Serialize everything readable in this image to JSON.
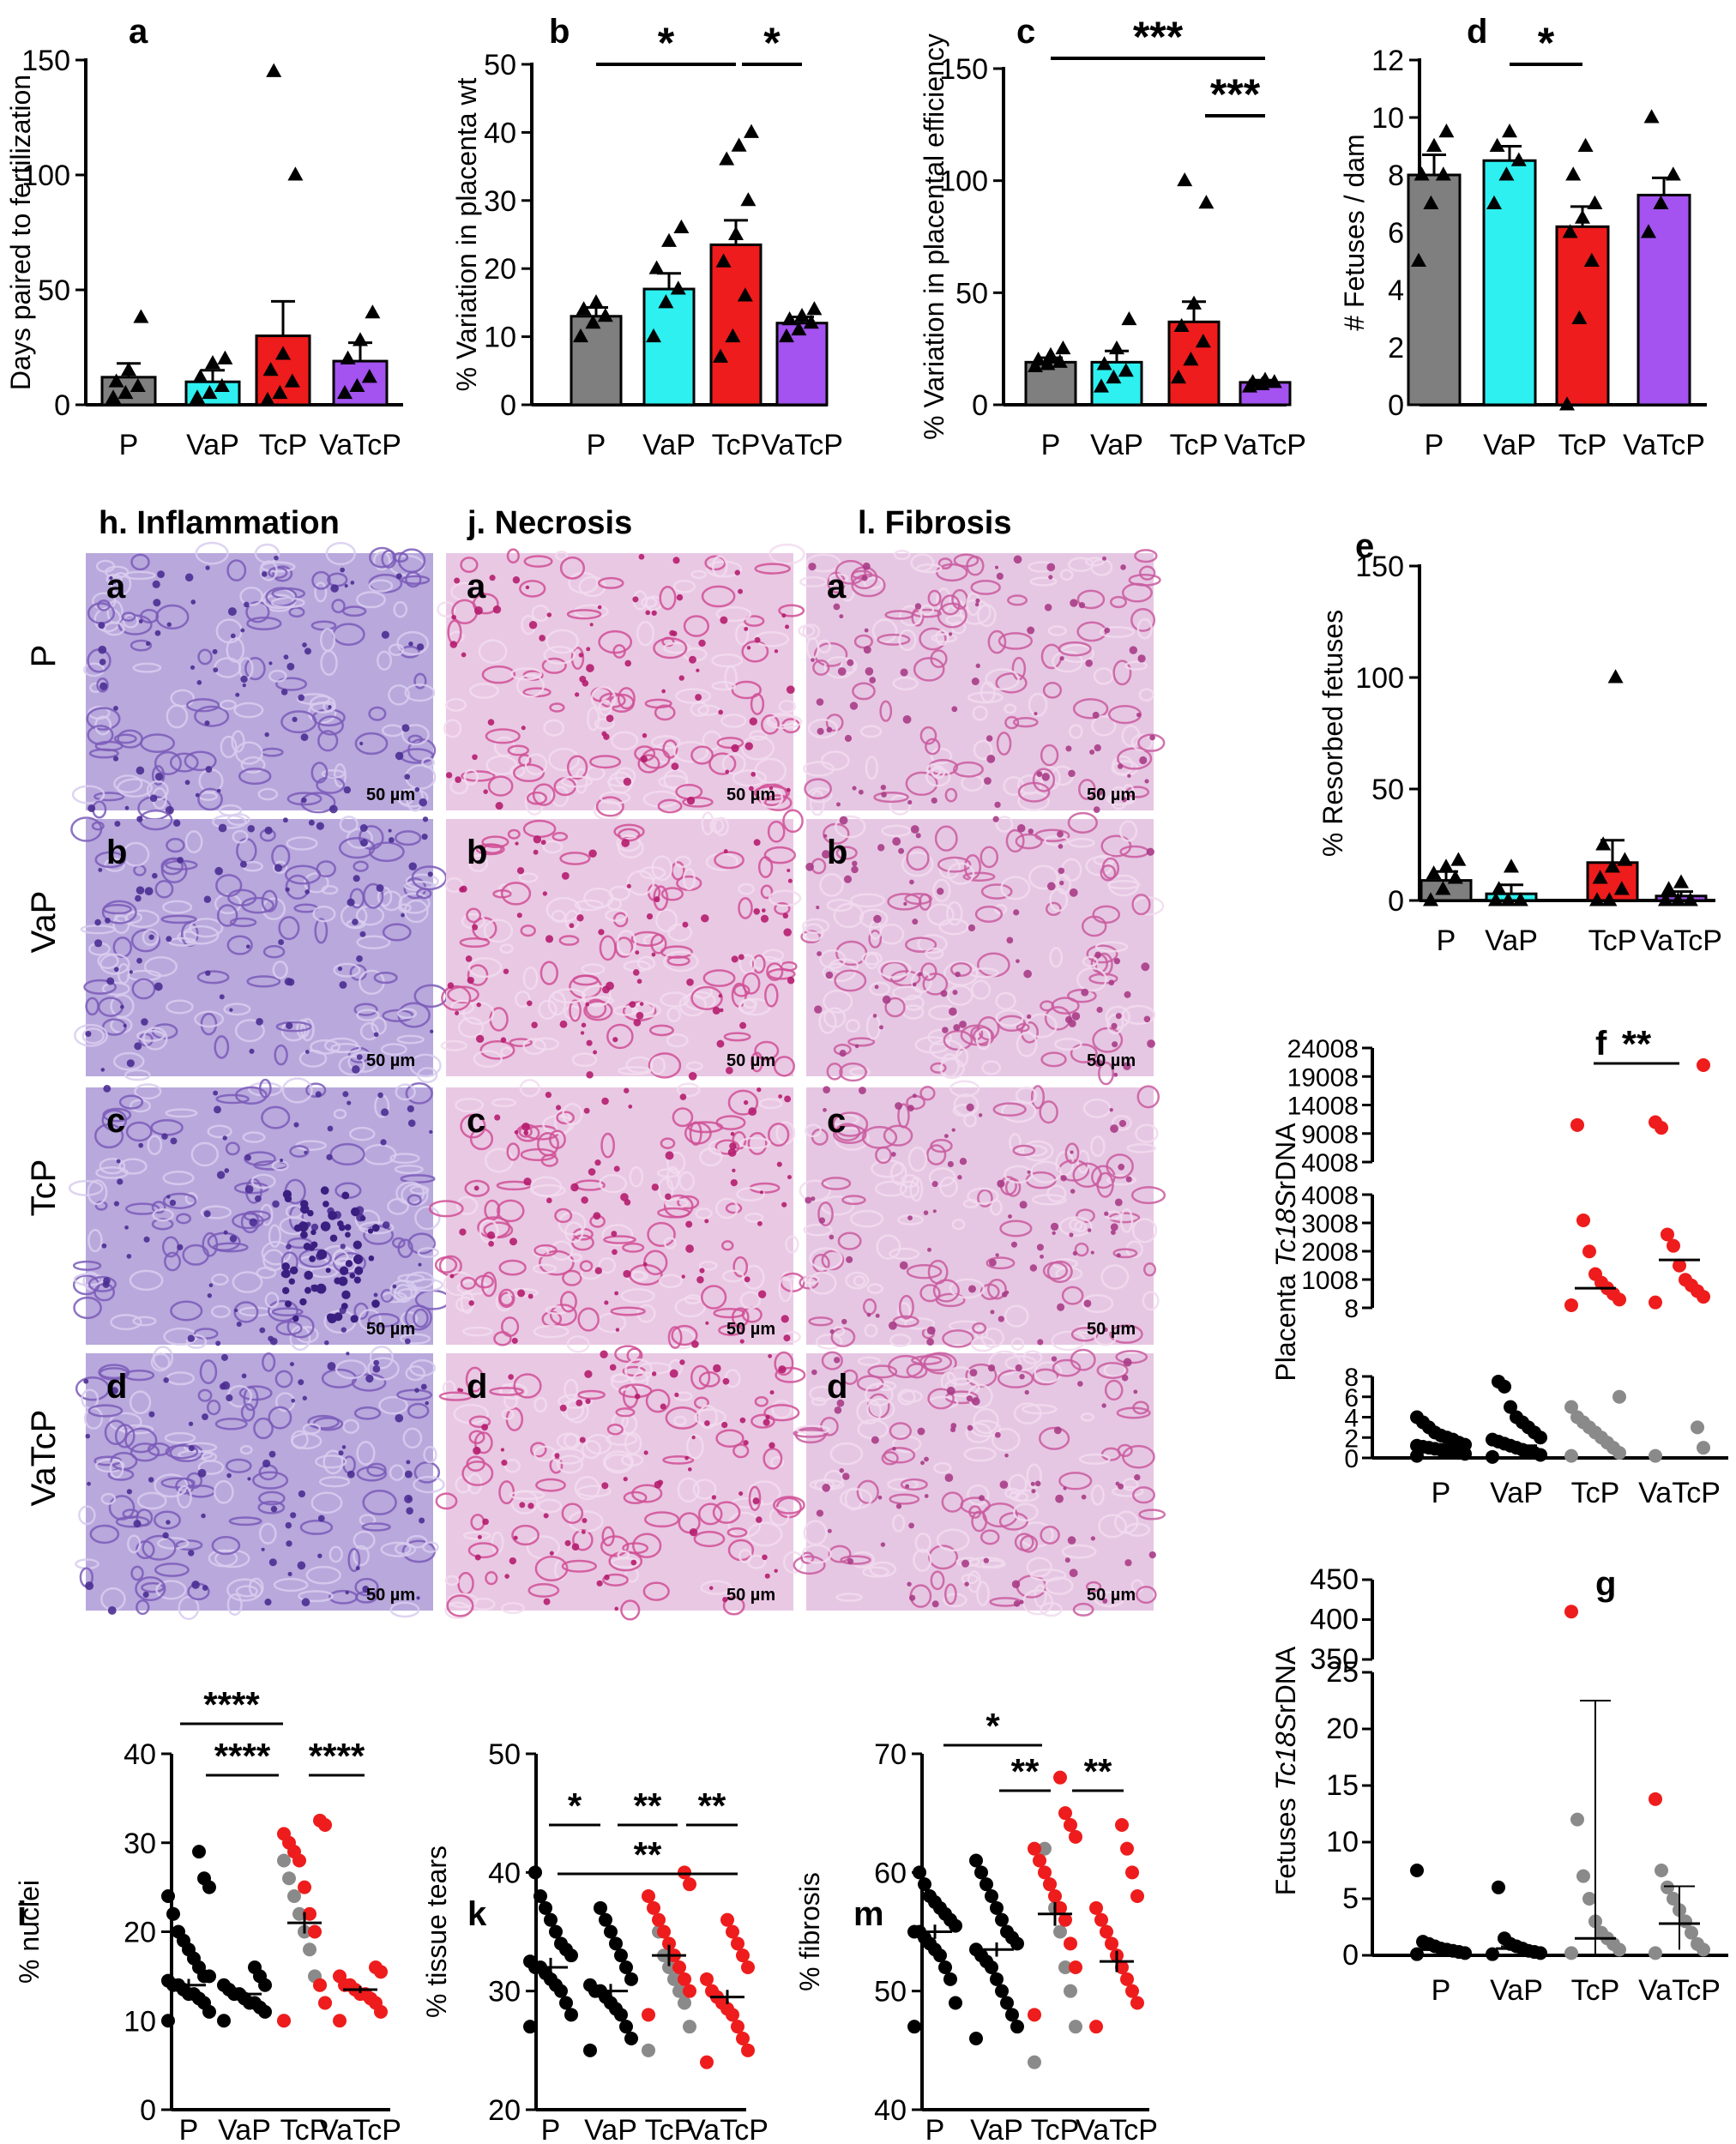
{
  "colors": {
    "P": "#7f7f7f",
    "VaP": "#2ef0f0",
    "TcP": "#ee1c1c",
    "VaTcP": "#a452f0",
    "black": "#000000",
    "grey": "#8a8a8a",
    "red": "#ee1c1c",
    "tissue": "#b06fb5"
  },
  "histology": {
    "headers": [
      "h. Inflammation",
      "j. Necrosis",
      "l. Fibrosis"
    ],
    "row_labels": [
      "P",
      "VaP",
      "TcP",
      "VaTcP"
    ],
    "panel_letters": [
      "a",
      "b",
      "c",
      "d"
    ],
    "scale_bar": "50 µm"
  },
  "chart_data": [
    {
      "id": "a",
      "type": "bar",
      "title": "a",
      "categories": [
        "P",
        "VaP",
        "TcP",
        "VaTcP"
      ],
      "category_labels": [
        "P",
        "VaP",
        "TcP",
        "VaTcP"
      ],
      "ylabel": "Days paired to fertilization",
      "ylim": [
        0,
        150
      ],
      "yticks": [
        0,
        50,
        100,
        150
      ],
      "values": [
        12,
        10,
        30,
        19
      ],
      "errors": [
        6,
        5,
        15,
        8
      ],
      "points": [
        [
          3,
          5,
          8,
          10,
          15,
          38
        ],
        [
          3,
          5,
          8,
          12,
          18,
          20
        ],
        [
          2,
          5,
          10,
          15,
          22,
          100,
          145
        ],
        [
          5,
          8,
          12,
          20,
          28,
          40
        ]
      ],
      "sig": []
    },
    {
      "id": "b",
      "type": "bar",
      "title": "b",
      "categories": [
        "P",
        "VaP",
        "TcP",
        "VaTcP"
      ],
      "category_labels": [
        "P",
        "VaP",
        "TcP",
        "VaTcP"
      ],
      "ylabel": "% Variation in placenta wt",
      "ylim": [
        0,
        50
      ],
      "yticks": [
        0,
        10,
        20,
        30,
        40,
        50
      ],
      "values": [
        13,
        17,
        23.5,
        12
      ],
      "errors": [
        1.3,
        2.3,
        3.6,
        0.9
      ],
      "points": [
        [
          10,
          12,
          13,
          14,
          15
        ],
        [
          10,
          15,
          17,
          20,
          24,
          26
        ],
        [
          7,
          10,
          16,
          21,
          25,
          30,
          36,
          38,
          40
        ],
        [
          10,
          11,
          12,
          12.5,
          13,
          14
        ]
      ],
      "sig": [
        {
          "from": 0,
          "to": 2,
          "label": "*"
        },
        {
          "from": 2,
          "to": 3,
          "label": "*"
        }
      ]
    },
    {
      "id": "c",
      "type": "bar",
      "title": "c",
      "categories": [
        "P",
        "VaP",
        "TcP",
        "VaTcP"
      ],
      "category_labels": [
        "P",
        "VaP",
        "TcP",
        "VaTcP"
      ],
      "ylabel": "% Variation in placental efficiency",
      "ylim": [
        0,
        150
      ],
      "yticks": [
        0,
        50,
        100,
        150
      ],
      "values": [
        19,
        19,
        37,
        10
      ],
      "errors": [
        2,
        5,
        9,
        1
      ],
      "points": [
        [
          17,
          18,
          19,
          20,
          22,
          25
        ],
        [
          8,
          12,
          15,
          18,
          25,
          38
        ],
        [
          12,
          20,
          28,
          35,
          45,
          90,
          100
        ],
        [
          8,
          9,
          10,
          10,
          11
        ]
      ],
      "sig": [
        {
          "from": 0,
          "to": 3,
          "label": "***"
        },
        {
          "from": 2,
          "to": 3,
          "label": "***"
        }
      ]
    },
    {
      "id": "d",
      "type": "bar",
      "title": "d",
      "categories": [
        "P",
        "VaP",
        "TcP",
        "VaTcP"
      ],
      "category_labels": [
        "P",
        "VaP",
        "TcP",
        "VaTcP"
      ],
      "ylabel": "# Fetuses / dam",
      "ylim": [
        0,
        12
      ],
      "yticks": [
        0,
        2,
        4,
        6,
        8,
        10,
        12
      ],
      "values": [
        8,
        8.5,
        6.2,
        7.3
      ],
      "errors": [
        0.7,
        0.5,
        0.7,
        0.6
      ],
      "points": [
        [
          5,
          7,
          8,
          8,
          9,
          9.5
        ],
        [
          7,
          8,
          8.5,
          9,
          9.5
        ],
        [
          0,
          3,
          5,
          6,
          6.5,
          7,
          8,
          9
        ],
        [
          6,
          7,
          8,
          10
        ]
      ],
      "sig": [
        {
          "from": 1,
          "to": 2,
          "label": "*"
        }
      ]
    },
    {
      "id": "e",
      "type": "bar",
      "title": "e",
      "categories": [
        "P",
        "VaP",
        "TcP",
        "VaTcP"
      ],
      "category_labels": [
        "P",
        "VaP",
        "TcP",
        "VaTcP"
      ],
      "ylabel": "% Resorbed fetuses",
      "ylim": [
        0,
        150
      ],
      "yticks": [
        0,
        50,
        100,
        150
      ],
      "values": [
        9,
        3,
        17,
        2
      ],
      "errors": [
        4,
        4,
        10,
        2
      ],
      "points": [
        [
          0,
          5,
          10,
          12,
          15,
          18
        ],
        [
          0,
          0,
          0,
          5,
          15
        ],
        [
          0,
          0,
          5,
          10,
          15,
          18,
          25,
          100
        ],
        [
          0,
          0,
          0,
          5,
          8
        ]
      ],
      "sig": []
    },
    {
      "id": "f",
      "type": "scatter",
      "title": "f",
      "categories": [
        "P",
        "VaP",
        "TcP",
        "VaTcP"
      ],
      "category_labels": [
        "P",
        "VaP",
        "TcP",
        "VaTcP"
      ],
      "ylabel": "Placenta Tc18SrDNA",
      "ylabel_parts": [
        "Placenta ",
        "Tc18S",
        "rDNA"
      ],
      "yticks_low": [
        "0",
        "2",
        "4",
        "6",
        "8"
      ],
      "yticks_mid": [
        "8",
        "1008",
        "2008",
        "3008",
        "4008"
      ],
      "yticks_high": [
        "4008",
        "9008",
        "14008",
        "19008",
        "24008"
      ],
      "means": [
        1.0,
        1.2,
        700,
        1700
      ],
      "series": [
        {
          "group": "P",
          "color": "black",
          "values": [
            0.2,
            0.4,
            0.5,
            0.6,
            0.7,
            0.8,
            0.9,
            1.0,
            1.1,
            1.2,
            1.3,
            1.5,
            1.8,
            2.0,
            2.2,
            2.5,
            3.0,
            3.5,
            4.0
          ]
        },
        {
          "group": "VaP",
          "color": "black",
          "values": [
            0.1,
            0.3,
            0.5,
            0.6,
            0.8,
            1.0,
            1.2,
            1.4,
            1.6,
            1.8,
            2.0,
            2.5,
            3.0,
            3.5,
            4.0,
            5.0,
            7.0,
            7.5
          ]
        },
        {
          "group": "TcP",
          "color": "grey",
          "values": [
            0.2,
            0.5,
            1.0,
            1.5,
            2.0,
            2.5,
            3.0,
            3.5,
            4.0,
            5.0,
            6.0
          ]
        },
        {
          "group": "TcP",
          "color": "red",
          "values": [
            100,
            300,
            500,
            700,
            900,
            1200,
            2000,
            3100,
            10500
          ]
        },
        {
          "group": "VaTcP",
          "color": "grey",
          "values": [
            0.2,
            1.0,
            3.0
          ]
        },
        {
          "group": "VaTcP",
          "color": "red",
          "values": [
            200,
            400,
            600,
            800,
            1000,
            1500,
            2200,
            2600,
            10000,
            11000,
            21000
          ]
        }
      ],
      "sig": [
        {
          "from": 2,
          "to": 3,
          "label": "**"
        }
      ]
    },
    {
      "id": "g",
      "type": "scatter",
      "title": "g",
      "categories": [
        "P",
        "VaP",
        "TcP",
        "VaTcP"
      ],
      "category_labels": [
        "P",
        "VaP",
        "TcP",
        "VaTcP"
      ],
      "ylabel": "Fetuses Tc18SrDNA",
      "ylabel_parts": [
        "Fetuses ",
        "Tc18S",
        "rDNA"
      ],
      "yticks_low": [
        "0",
        "5",
        "10",
        "15",
        "20",
        "25"
      ],
      "yticks_high": [
        "350",
        "400",
        "450"
      ],
      "means": [
        0.5,
        0.6,
        1.5,
        2.8
      ],
      "errors": [
        [
          0.2,
          0.2
        ],
        [
          0.2,
          0.2
        ],
        [
          1.5,
          21
        ],
        [
          2.3,
          3.3
        ]
      ],
      "series": [
        {
          "group": "P",
          "color": "black",
          "values": [
            0.1,
            0.2,
            0.3,
            0.4,
            0.5,
            0.6,
            0.8,
            1.0,
            1.2,
            7.5
          ]
        },
        {
          "group": "VaP",
          "color": "black",
          "values": [
            0.1,
            0.2,
            0.3,
            0.4,
            0.6,
            0.8,
            1.0,
            1.5,
            6.0
          ]
        },
        {
          "group": "TcP",
          "color": "grey",
          "values": [
            0.2,
            0.5,
            1.0,
            1.5,
            2.0,
            3.0,
            5.0,
            7.0,
            12.0
          ]
        },
        {
          "group": "TcP",
          "color": "red",
          "values": [
            410
          ]
        },
        {
          "group": "VaTcP",
          "color": "grey",
          "values": [
            0.2,
            0.5,
            1.0,
            2.0,
            3.0,
            4.0,
            5.0,
            6.0,
            7.5
          ]
        },
        {
          "group": "VaTcP",
          "color": "red",
          "values": [
            13.8
          ]
        }
      ],
      "sig": []
    },
    {
      "id": "i",
      "type": "scatter",
      "title": "i",
      "categories": [
        "P",
        "VaP",
        "TcP",
        "VaTcP"
      ],
      "category_labels": [
        "P",
        "VaP",
        "TcP",
        "VaTcP"
      ],
      "ylabel": "% nuclei",
      "ylim": [
        0,
        40
      ],
      "yticks": [
        0,
        10,
        20,
        30,
        40
      ],
      "means": [
        14,
        13,
        21,
        13.5
      ],
      "errors": [
        0.7,
        0.4,
        1.2,
        0.4
      ],
      "series": [
        {
          "group": "P",
          "color": "black",
          "values": [
            10,
            11,
            12,
            12.5,
            13,
            13,
            13.5,
            14,
            14,
            14.5,
            15,
            15,
            16,
            17,
            18,
            19,
            20,
            22,
            24,
            25,
            26,
            29
          ]
        },
        {
          "group": "VaP",
          "color": "black",
          "values": [
            10,
            11,
            11.5,
            12,
            12,
            12.5,
            13,
            13,
            13.5,
            14,
            14,
            15,
            16
          ]
        },
        {
          "group": "TcP",
          "color": "grey",
          "values": [
            10,
            12,
            14,
            15,
            18,
            20,
            22,
            24,
            26,
            28
          ]
        },
        {
          "group": "TcP",
          "color": "red",
          "values": [
            10,
            12,
            14,
            20,
            22,
            25,
            28,
            29,
            30,
            31,
            32,
            32.5
          ]
        },
        {
          "group": "VaTcP",
          "color": "red",
          "values": [
            10,
            11,
            12,
            12.5,
            13,
            13,
            13.5,
            14,
            14,
            15,
            15.5,
            16
          ]
        }
      ],
      "sig": [
        {
          "from": 0,
          "to": 2,
          "label": "****"
        },
        {
          "from": 1,
          "to": 2,
          "label": "****"
        },
        {
          "from": 2,
          "to": 3,
          "label": "****"
        }
      ]
    },
    {
      "id": "k",
      "type": "scatter",
      "title": "k",
      "categories": [
        "P",
        "VaP",
        "TcP",
        "VaTcP"
      ],
      "category_labels": [
        "P",
        "VaP",
        "TcP",
        "VaTcP"
      ],
      "ylabel": "% tissue tears",
      "ylim": [
        20,
        50
      ],
      "yticks": [
        20,
        30,
        40,
        50
      ],
      "means": [
        32,
        30,
        33,
        29.5
      ],
      "errors": [
        0.8,
        0.6,
        0.9,
        0.6
      ],
      "series": [
        {
          "group": "P",
          "color": "black",
          "values": [
            27,
            28,
            29,
            30,
            30.5,
            31,
            31.5,
            32,
            32,
            32.5,
            33,
            33.5,
            34,
            35,
            36,
            37,
            38,
            40
          ]
        },
        {
          "group": "VaP",
          "color": "black",
          "values": [
            25,
            26,
            27,
            28,
            28.5,
            29,
            29.5,
            30,
            30,
            30.5,
            31,
            32,
            33,
            34,
            35,
            36,
            37
          ]
        },
        {
          "group": "TcP",
          "color": "grey",
          "values": [
            25,
            27,
            29,
            30,
            31,
            32,
            33,
            35
          ]
        },
        {
          "group": "TcP",
          "color": "red",
          "values": [
            28,
            30,
            31,
            32,
            33,
            34,
            35,
            36,
            37,
            38,
            39,
            40
          ]
        },
        {
          "group": "VaTcP",
          "color": "red",
          "values": [
            24,
            25,
            26,
            27,
            28,
            28.5,
            29,
            29.5,
            30,
            31,
            32,
            33,
            34,
            35,
            36
          ]
        }
      ],
      "sig": [
        {
          "from": 0,
          "to": 1,
          "label": "*"
        },
        {
          "from": 1,
          "to": 2,
          "label": "**"
        },
        {
          "from": 2,
          "to": 3,
          "label": "**"
        },
        {
          "from": 0,
          "to": 3,
          "label": "**"
        }
      ]
    },
    {
      "id": "m",
      "type": "scatter",
      "title": "m",
      "categories": [
        "P",
        "VaP",
        "TcP",
        "VaTcP"
      ],
      "category_labels": [
        "P",
        "VaP",
        "TcP",
        "VaTcP"
      ],
      "ylabel": "% fibrosis",
      "ylim": [
        40,
        70
      ],
      "yticks": [
        40,
        50,
        60,
        70
      ],
      "means": [
        55,
        53.5,
        56.5,
        52.5
      ],
      "errors": [
        0.6,
        0.6,
        1.0,
        0.9
      ],
      "series": [
        {
          "group": "P",
          "color": "black",
          "values": [
            47,
            49,
            51,
            52,
            53,
            53.5,
            54,
            54.5,
            55,
            55,
            55.5,
            56,
            56.5,
            57,
            57.5,
            58,
            59,
            60
          ]
        },
        {
          "group": "VaP",
          "color": "black",
          "values": [
            46,
            47,
            48,
            49,
            50,
            51,
            52,
            52.5,
            53,
            53.5,
            54,
            54.5,
            55,
            56,
            57,
            58,
            59,
            60,
            61
          ]
        },
        {
          "group": "TcP",
          "color": "grey",
          "values": [
            44,
            47,
            50,
            52,
            55,
            57,
            59,
            62
          ]
        },
        {
          "group": "TcP",
          "color": "red",
          "values": [
            48,
            52,
            54,
            56,
            57,
            58,
            59,
            60,
            61,
            62,
            63,
            64,
            65,
            68
          ]
        },
        {
          "group": "VaTcP",
          "color": "red",
          "values": [
            47,
            49,
            50,
            51,
            52,
            53,
            54,
            55,
            56,
            57,
            58,
            60,
            62,
            64
          ]
        }
      ],
      "sig": [
        {
          "from": 0,
          "to": 2,
          "label": "*"
        },
        {
          "from": 1,
          "to": 2,
          "label": "**"
        },
        {
          "from": 2,
          "to": 3,
          "label": "**"
        }
      ]
    }
  ]
}
